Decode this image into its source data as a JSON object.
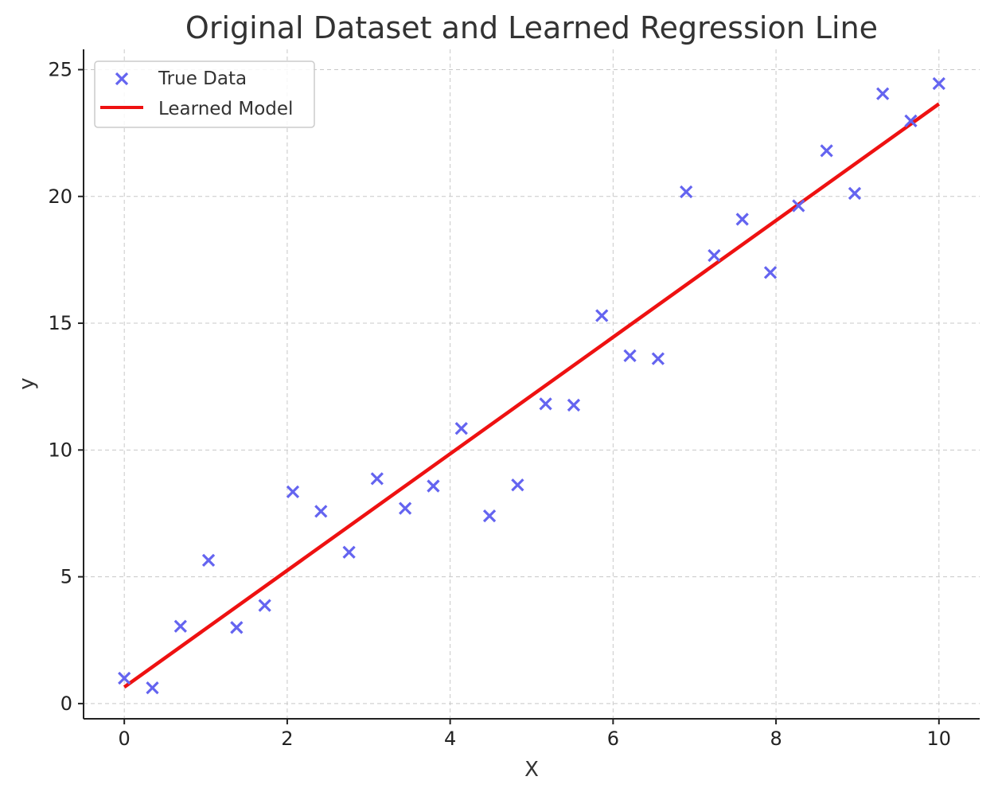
{
  "chart_data": {
    "type": "scatter",
    "title": "Original Dataset and Learned Regression Line",
    "xlabel": "X",
    "ylabel": "y",
    "xlim": [
      -0.5,
      10.5
    ],
    "ylim": [
      -0.6,
      25.8
    ],
    "xticks": [
      0,
      2,
      4,
      6,
      8,
      10
    ],
    "yticks": [
      0,
      5,
      10,
      15,
      20,
      25
    ],
    "grid": true,
    "legend_position": "top-left",
    "series": [
      {
        "name": "True Data",
        "kind": "scatter",
        "marker": "x",
        "color": "#6464f0",
        "x": [
          0.0,
          0.345,
          0.69,
          1.034,
          1.379,
          1.724,
          2.069,
          2.414,
          2.759,
          3.103,
          3.448,
          3.793,
          4.138,
          4.483,
          4.828,
          5.172,
          5.517,
          5.862,
          6.207,
          6.552,
          6.897,
          7.241,
          7.586,
          7.931,
          8.276,
          8.621,
          8.966,
          9.31,
          9.655,
          10.0
        ],
        "y": [
          1.0,
          0.62,
          3.05,
          5.65,
          3.0,
          3.87,
          8.35,
          7.58,
          5.97,
          8.87,
          7.7,
          8.58,
          10.85,
          7.4,
          8.62,
          11.82,
          11.77,
          15.3,
          13.72,
          13.6,
          20.18,
          17.67,
          19.1,
          17.0,
          19.63,
          21.8,
          20.12,
          24.05,
          22.98,
          24.45
        ]
      },
      {
        "name": "Learned Model",
        "kind": "line",
        "color": "#ee1111",
        "x": [
          0,
          10
        ],
        "y": [
          0.65,
          23.65
        ]
      }
    ]
  }
}
